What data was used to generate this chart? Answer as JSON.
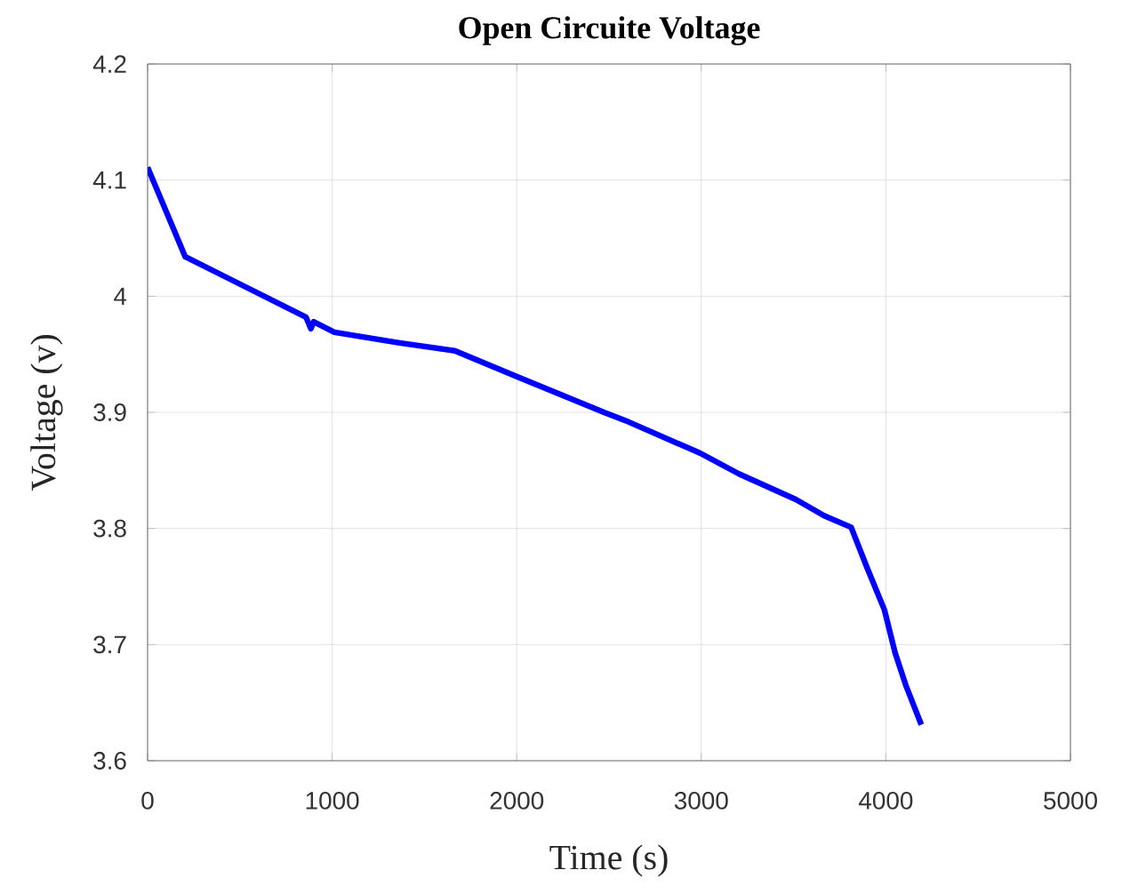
{
  "chart_data": {
    "type": "line",
    "title": "Open Circuite Voltage",
    "xlabel": "Time (s)",
    "ylabel": "Voltage (v)",
    "xlim": [
      0,
      5000
    ],
    "ylim": [
      3.6,
      4.2
    ],
    "xticks": [
      0,
      1000,
      2000,
      3000,
      4000,
      5000
    ],
    "yticks": [
      3.6,
      3.7,
      3.8,
      3.9,
      4,
      4.1,
      4.2
    ],
    "grid": true,
    "series": [
      {
        "color": "#0000ff",
        "x": [
          0,
          204,
          858,
          885,
          900,
          1012,
          1358,
          1665,
          2012,
          2473,
          2588,
          2992,
          3204,
          3512,
          3665,
          3812,
          3896,
          3992,
          4050,
          4108,
          4192
        ],
        "values": [
          4.111,
          4.034,
          3.982,
          3.972,
          3.978,
          3.969,
          3.96,
          3.953,
          3.93,
          3.9,
          3.893,
          3.865,
          3.847,
          3.825,
          3.811,
          3.801,
          3.767,
          3.73,
          3.693,
          3.665,
          3.631
        ]
      }
    ]
  }
}
